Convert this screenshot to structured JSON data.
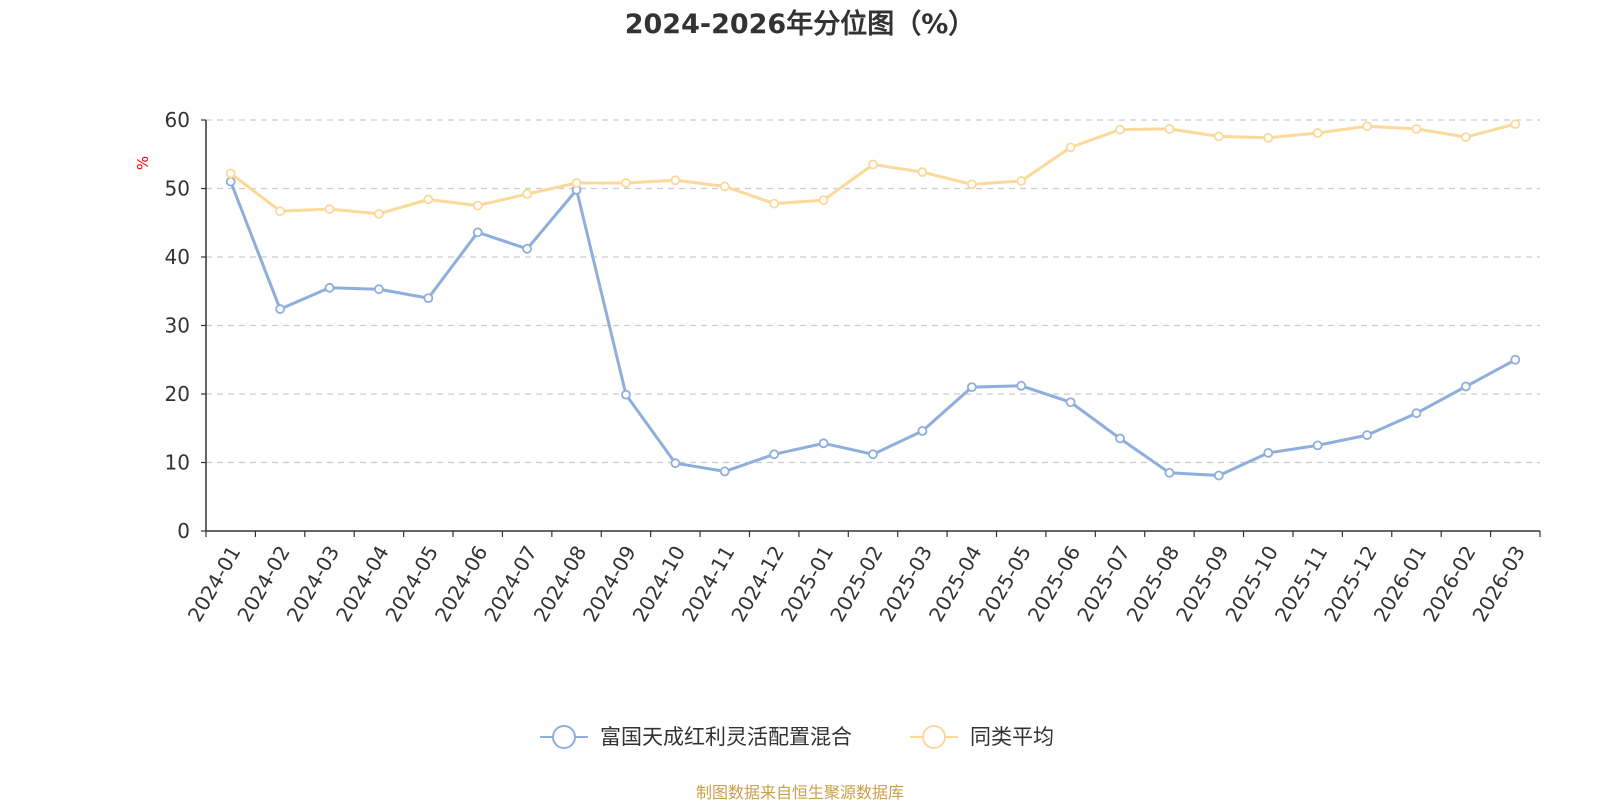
{
  "chart_data": {
    "type": "line",
    "title": "2024-2026年分位图（%）",
    "ylabel": "%",
    "xlabel": "",
    "ylim": [
      0,
      60
    ],
    "yticks": [
      0,
      10,
      20,
      30,
      40,
      50,
      60
    ],
    "grid": true,
    "legend_position": "bottom-center",
    "categories": [
      "2024-01",
      "2024-02",
      "2024-03",
      "2024-04",
      "2024-05",
      "2024-06",
      "2024-07",
      "2024-08",
      "2024-09",
      "2024-10",
      "2024-11",
      "2024-12",
      "2025-01",
      "2025-02",
      "2025-03",
      "2025-04",
      "2025-05",
      "2025-06",
      "2025-07",
      "2025-08",
      "2025-09",
      "2025-10",
      "2025-11",
      "2025-12",
      "2026-01",
      "2026-02",
      "2026-03"
    ],
    "series": [
      {
        "name": "富国天成红利灵活配置混合",
        "color": "#8eaedc",
        "values": [
          51.0,
          32.4,
          35.5,
          35.3,
          34.0,
          43.6,
          41.2,
          49.8,
          19.9,
          9.9,
          8.7,
          11.2,
          12.8,
          11.2,
          14.6,
          21.0,
          21.2,
          18.8,
          13.5,
          8.5,
          8.1,
          11.4,
          12.5,
          14.0,
          17.2,
          21.1,
          25.0
        ]
      },
      {
        "name": "同类平均",
        "color": "#fcd99b",
        "values": [
          52.2,
          46.7,
          47.0,
          46.3,
          48.4,
          47.5,
          49.2,
          50.8,
          50.8,
          51.2,
          50.3,
          47.8,
          48.3,
          53.5,
          52.4,
          50.6,
          51.1,
          56.0,
          58.6,
          58.7,
          57.6,
          57.4,
          58.1,
          59.1,
          58.7,
          57.5,
          59.4
        ]
      }
    ],
    "source": "制图数据来自恒生聚源数据库"
  }
}
